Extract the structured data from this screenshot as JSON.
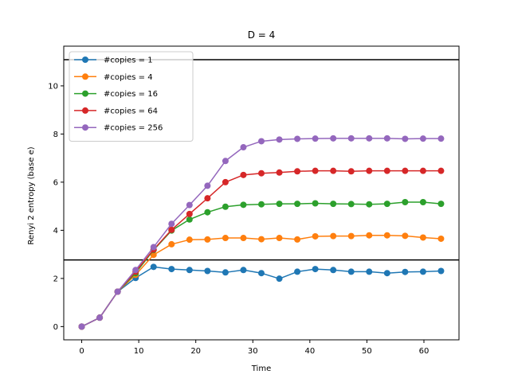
{
  "chart_data": {
    "type": "line",
    "title": "D =  4",
    "xlabel": "Time",
    "ylabel": "Renyi 2 entropy (base e)",
    "xlim": [
      -3.15,
      66.15
    ],
    "ylim": [
      -0.55,
      11.65
    ],
    "xticks": [
      0,
      10,
      20,
      30,
      40,
      50,
      60
    ],
    "yticks": [
      0,
      2,
      4,
      6,
      8,
      10
    ],
    "grid": false,
    "legend_position": "upper-left",
    "hlines": [
      {
        "y": 11.09,
        "color": "#000000"
      },
      {
        "y": 2.77,
        "color": "#000000"
      }
    ],
    "x": [
      0,
      3.15,
      6.3,
      9.45,
      12.6,
      15.75,
      18.9,
      22.05,
      25.2,
      28.35,
      31.5,
      34.65,
      37.8,
      40.95,
      44.1,
      47.25,
      50.4,
      53.55,
      56.7,
      59.85,
      63.0
    ],
    "series": [
      {
        "name": "#copies = 1",
        "color": "#1f77b4",
        "values": [
          0,
          0.37,
          1.45,
          2.02,
          2.48,
          2.39,
          2.35,
          2.31,
          2.25,
          2.35,
          2.22,
          1.99,
          2.28,
          2.39,
          2.35,
          2.28,
          2.28,
          2.22,
          2.27,
          2.28,
          2.31
        ]
      },
      {
        "name": "#copies = 4",
        "color": "#ff7f0e",
        "values": [
          0,
          0.37,
          1.45,
          2.15,
          2.98,
          3.42,
          3.61,
          3.62,
          3.68,
          3.68,
          3.63,
          3.68,
          3.62,
          3.75,
          3.76,
          3.76,
          3.79,
          3.79,
          3.77,
          3.7,
          3.65
        ]
      },
      {
        "name": "#copies = 16",
        "color": "#2ca02c",
        "values": [
          0,
          0.37,
          1.45,
          2.22,
          3.18,
          3.99,
          4.45,
          4.75,
          4.98,
          5.06,
          5.08,
          5.1,
          5.1,
          5.12,
          5.1,
          5.09,
          5.08,
          5.1,
          5.17,
          5.17,
          5.1
        ]
      },
      {
        "name": "#copies = 64",
        "color": "#d62728",
        "values": [
          0,
          0.37,
          1.45,
          2.28,
          3.2,
          4.02,
          4.68,
          5.33,
          6.0,
          6.3,
          6.37,
          6.4,
          6.45,
          6.47,
          6.47,
          6.45,
          6.47,
          6.47,
          6.47,
          6.47,
          6.47
        ]
      },
      {
        "name": "#copies = 256",
        "color": "#9467bd",
        "values": [
          0,
          0.37,
          1.45,
          2.35,
          3.3,
          4.27,
          5.05,
          5.85,
          6.88,
          7.45,
          7.7,
          7.77,
          7.8,
          7.81,
          7.82,
          7.82,
          7.82,
          7.82,
          7.8,
          7.81,
          7.81
        ]
      }
    ]
  }
}
